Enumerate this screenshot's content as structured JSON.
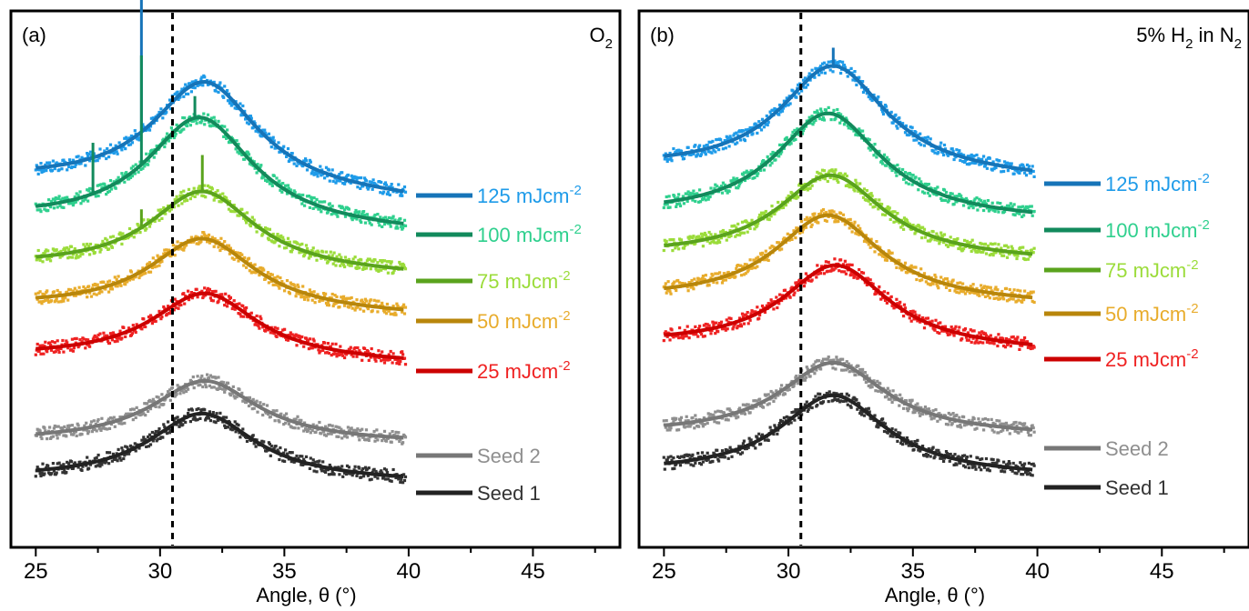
{
  "chart_data": [
    {
      "type": "scatter",
      "panel_label": "(a)",
      "atmosphere": {
        "base": "O",
        "sub": "2",
        "suffix": ""
      },
      "xlabel": "Angle, θ (°)",
      "xlim": [
        24,
        48.5
      ],
      "xticks": [
        "25",
        "30",
        "35",
        "40",
        "45"
      ],
      "reference_line_x": 30.5,
      "legend_placement": "right",
      "series": [
        {
          "name": "125 mJcm",
          "sup": "-2",
          "color": "#1e9be9",
          "fit_color": "#1674b8",
          "peak_x": 31.8,
          "peak_height": 3.0,
          "baseline_left": 1.3,
          "baseline_right": 0.75,
          "spikes": [
            {
              "x": 29.25,
              "height": 7.5
            }
          ]
        },
        {
          "name": "100 mJcm",
          "sup": "-2",
          "color": "#2fd08e",
          "fit_color": "#128a5c",
          "peak_x": 31.6,
          "peak_height": 3.0,
          "baseline_left": 0.75,
          "baseline_right": 0.4,
          "spikes": [
            {
              "x": 27.3,
              "height": 1.4
            },
            {
              "x": 29.25,
              "height": 3.0
            },
            {
              "x": 31.4,
              "height": 0.6
            }
          ]
        },
        {
          "name": "75 mJcm",
          "sup": "-2",
          "color": "#9bdc3a",
          "fit_color": "#5aa31d",
          "peak_x": 31.7,
          "peak_height": 2.2,
          "baseline_left": 0.55,
          "baseline_right": 0.3,
          "spikes": [
            {
              "x": 31.7,
              "height": 1.0
            },
            {
              "x": 29.25,
              "height": 0.5
            }
          ]
        },
        {
          "name": "50 mJcm",
          "sup": "-2",
          "color": "#e8ac2c",
          "fit_color": "#b8860b",
          "peak_x": 31.7,
          "peak_height": 2.0,
          "baseline_left": 0.5,
          "baseline_right": 0.25,
          "spikes": []
        },
        {
          "name": "25 mJcm",
          "sup": "-2",
          "color": "#ef2222",
          "fit_color": "#cc0000",
          "peak_x": 31.8,
          "peak_height": 1.85,
          "baseline_left": 0.3,
          "baseline_right": 0.1,
          "spikes": []
        },
        {
          "name": "Seed 2",
          "sup": "",
          "color": "#8f8f8f",
          "fit_color": "#777777",
          "peak_x": 31.8,
          "peak_height": 1.7,
          "baseline_left": 0.25,
          "baseline_right": 0.2,
          "spikes": []
        },
        {
          "name": "Seed 1",
          "sup": "",
          "color": "#333333",
          "fit_color": "#222222",
          "peak_x": 31.7,
          "peak_height": 1.85,
          "baseline_left": 0.2,
          "baseline_right": 0.1,
          "spikes": []
        }
      ]
    },
    {
      "type": "scatter",
      "panel_label": "(b)",
      "atmosphere": {
        "base": "5% H",
        "sub": "2",
        "suffix": " in N"
      },
      "atmosphere_tail_sub": "2",
      "xlabel": "Angle, θ (°)",
      "xlim": [
        24,
        48.5
      ],
      "xticks": [
        "25",
        "30",
        "35",
        "40",
        "45"
      ],
      "reference_line_x": 30.5,
      "legend_placement": "right",
      "series": [
        {
          "name": "125 mJcm",
          "sup": "-2",
          "color": "#1e9be9",
          "fit_color": "#1674b8",
          "peak_x": 31.8,
          "peak_height": 3.0,
          "baseline_left": 0.6,
          "baseline_right": 0.3,
          "spikes": [
            {
              "x": 31.8,
              "height": 0.5
            }
          ]
        },
        {
          "name": "100 mJcm",
          "sup": "-2",
          "color": "#2fd08e",
          "fit_color": "#128a5c",
          "peak_x": 31.6,
          "peak_height": 2.9,
          "baseline_left": 0.5,
          "baseline_right": 0.35,
          "spikes": []
        },
        {
          "name": "75 mJcm",
          "sup": "-2",
          "color": "#9bdc3a",
          "fit_color": "#5aa31d",
          "peak_x": 31.7,
          "peak_height": 2.3,
          "baseline_left": 0.45,
          "baseline_right": 0.3,
          "spikes": []
        },
        {
          "name": "50 mJcm",
          "sup": "-2",
          "color": "#e8ac2c",
          "fit_color": "#b8860b",
          "peak_x": 31.6,
          "peak_height": 2.4,
          "baseline_left": 0.35,
          "baseline_right": 0.2,
          "spikes": []
        },
        {
          "name": "25 mJcm",
          "sup": "-2",
          "color": "#ef2222",
          "fit_color": "#cc0000",
          "peak_x": 31.9,
          "peak_height": 2.3,
          "baseline_left": 0.3,
          "baseline_right": 0.1,
          "spikes": []
        },
        {
          "name": "Seed 2",
          "sup": "",
          "color": "#8f8f8f",
          "fit_color": "#777777",
          "peak_x": 31.8,
          "peak_height": 2.0,
          "baseline_left": 0.25,
          "baseline_right": 0.2,
          "spikes": []
        },
        {
          "name": "Seed 1",
          "sup": "",
          "color": "#333333",
          "fit_color": "#222222",
          "peak_x": 31.8,
          "peak_height": 2.2,
          "baseline_left": 0.2,
          "baseline_right": 0.1,
          "spikes": []
        }
      ]
    }
  ]
}
